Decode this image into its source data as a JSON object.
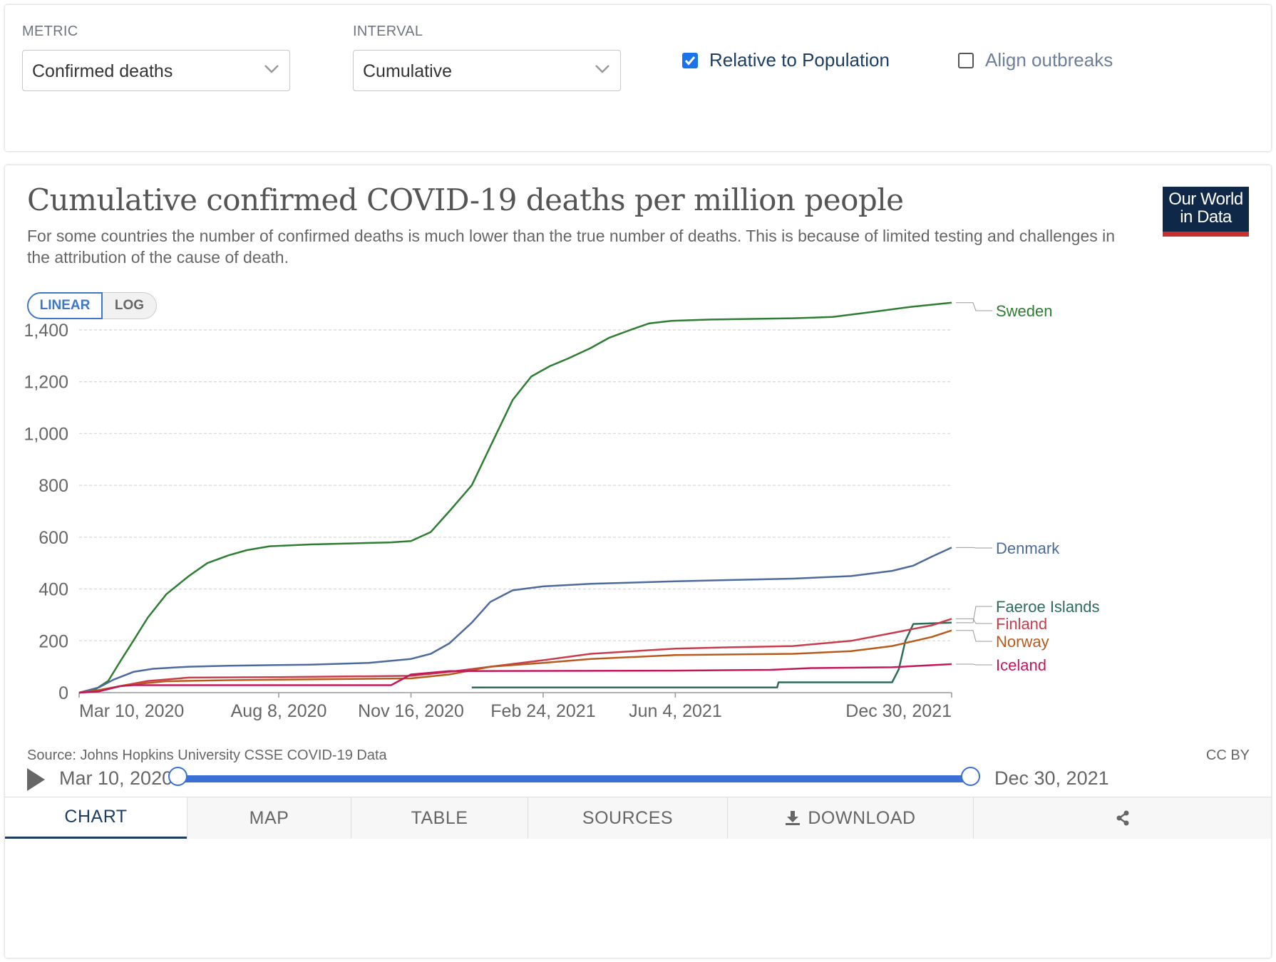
{
  "controls": {
    "metric_label": "METRIC",
    "metric_value": "Confirmed deaths",
    "interval_label": "INTERVAL",
    "interval_value": "Cumulative",
    "relative_label": "Relative to Population",
    "relative_checked": true,
    "align_label": "Align outbreaks",
    "align_checked": false
  },
  "header": {
    "title": "Cumulative confirmed COVID-19 deaths per million people",
    "subtitle": "For some countries the number of confirmed deaths is much lower than the true number of deaths. This is because of limited testing and challenges in the attribution of the cause of death.",
    "logo_line1": "Our World",
    "logo_line2": "in Data"
  },
  "scale_toggle": {
    "linear": "LINEAR",
    "log": "LOG",
    "active": "linear"
  },
  "footer": {
    "source": "Source: Johns Hopkins University CSSE COVID-19 Data",
    "license": "CC BY"
  },
  "timeline": {
    "start": "Mar 10, 2020",
    "end": "Dec 30, 2021"
  },
  "tabs": [
    {
      "label": "CHART",
      "icon": "",
      "active": true
    },
    {
      "label": "MAP",
      "icon": "",
      "active": false
    },
    {
      "label": "TABLE",
      "icon": "",
      "active": false
    },
    {
      "label": "SOURCES",
      "icon": "",
      "active": false
    },
    {
      "label": "DOWNLOAD",
      "icon": "download-icon",
      "active": false
    },
    {
      "label": "",
      "icon": "share-icon",
      "active": false
    }
  ],
  "chart_data": {
    "type": "line",
    "title": "Cumulative confirmed COVID-19 deaths per million people",
    "xlabel": "",
    "ylabel": "",
    "x_range": [
      "2020-03-10",
      "2021-12-30"
    ],
    "ylim": [
      0,
      1500
    ],
    "y_ticks": [
      0,
      200,
      400,
      600,
      800,
      1000,
      1200,
      1400
    ],
    "y_tick_labels": [
      "0",
      "200",
      "400",
      "600",
      "800",
      "1,000",
      "1,200",
      "1,400"
    ],
    "x_ticks": [
      "2020-03-10",
      "2020-08-08",
      "2020-11-16",
      "2021-02-24",
      "2021-06-04",
      "2021-12-30"
    ],
    "x_tick_labels": [
      "Mar 10, 2020",
      "Aug 8, 2020",
      "Nov 16, 2020",
      "Feb 24, 2021",
      "Jun 4, 2021",
      "Dec 30, 2021"
    ],
    "grid": "horizontal dashed",
    "legend": "end-of-line labels",
    "series": [
      {
        "name": "Sweden",
        "color": "#2e7d32",
        "points": [
          [
            "2020-03-10",
            0
          ],
          [
            "2020-03-20",
            5
          ],
          [
            "2020-04-01",
            45
          ],
          [
            "2020-04-10",
            120
          ],
          [
            "2020-04-20",
            200
          ],
          [
            "2020-05-01",
            290
          ],
          [
            "2020-05-15",
            380
          ],
          [
            "2020-06-01",
            450
          ],
          [
            "2020-06-15",
            500
          ],
          [
            "2020-07-01",
            530
          ],
          [
            "2020-07-15",
            550
          ],
          [
            "2020-08-01",
            565
          ],
          [
            "2020-09-01",
            572
          ],
          [
            "2020-10-01",
            576
          ],
          [
            "2020-11-01",
            580
          ],
          [
            "2020-11-16",
            585
          ],
          [
            "2020-12-01",
            620
          ],
          [
            "2020-12-15",
            700
          ],
          [
            "2021-01-01",
            800
          ],
          [
            "2021-01-15",
            950
          ],
          [
            "2021-02-01",
            1130
          ],
          [
            "2021-02-15",
            1220
          ],
          [
            "2021-03-01",
            1260
          ],
          [
            "2021-03-15",
            1290
          ],
          [
            "2021-04-01",
            1330
          ],
          [
            "2021-04-15",
            1370
          ],
          [
            "2021-05-01",
            1400
          ],
          [
            "2021-05-15",
            1425
          ],
          [
            "2021-06-01",
            1435
          ],
          [
            "2021-07-01",
            1440
          ],
          [
            "2021-09-01",
            1445
          ],
          [
            "2021-10-01",
            1450
          ],
          [
            "2021-11-01",
            1470
          ],
          [
            "2021-12-01",
            1490
          ],
          [
            "2021-12-30",
            1505
          ]
        ]
      },
      {
        "name": "Denmark",
        "color": "#4c6a9c",
        "points": [
          [
            "2020-03-10",
            0
          ],
          [
            "2020-03-25",
            20
          ],
          [
            "2020-04-05",
            50
          ],
          [
            "2020-04-20",
            80
          ],
          [
            "2020-05-05",
            92
          ],
          [
            "2020-06-01",
            100
          ],
          [
            "2020-07-01",
            104
          ],
          [
            "2020-09-01",
            108
          ],
          [
            "2020-10-15",
            115
          ],
          [
            "2020-11-16",
            130
          ],
          [
            "2020-12-01",
            150
          ],
          [
            "2020-12-15",
            190
          ],
          [
            "2021-01-01",
            270
          ],
          [
            "2021-01-15",
            350
          ],
          [
            "2021-02-01",
            395
          ],
          [
            "2021-02-24",
            410
          ],
          [
            "2021-04-01",
            420
          ],
          [
            "2021-06-04",
            430
          ],
          [
            "2021-09-01",
            440
          ],
          [
            "2021-10-15",
            450
          ],
          [
            "2021-11-15",
            470
          ],
          [
            "2021-12-01",
            490
          ],
          [
            "2021-12-15",
            525
          ],
          [
            "2021-12-30",
            560
          ]
        ]
      },
      {
        "name": "Faeroe Islands",
        "color": "#2e6b5a",
        "points": [
          [
            "2021-01-01",
            20
          ],
          [
            "2021-08-20",
            20
          ],
          [
            "2021-08-21",
            40
          ],
          [
            "2021-11-15",
            40
          ],
          [
            "2021-11-20",
            90
          ],
          [
            "2021-11-25",
            200
          ],
          [
            "2021-12-01",
            265
          ],
          [
            "2021-12-30",
            270
          ]
        ]
      },
      {
        "name": "Finland",
        "color": "#c83c4b",
        "points": [
          [
            "2020-03-10",
            0
          ],
          [
            "2020-03-25",
            5
          ],
          [
            "2020-04-10",
            25
          ],
          [
            "2020-05-01",
            45
          ],
          [
            "2020-06-01",
            58
          ],
          [
            "2020-08-08",
            60
          ],
          [
            "2020-11-16",
            65
          ],
          [
            "2020-12-15",
            80
          ],
          [
            "2021-01-15",
            100
          ],
          [
            "2021-02-24",
            125
          ],
          [
            "2021-04-01",
            150
          ],
          [
            "2021-06-04",
            170
          ],
          [
            "2021-07-15",
            175
          ],
          [
            "2021-09-01",
            180
          ],
          [
            "2021-10-15",
            200
          ],
          [
            "2021-11-15",
            230
          ],
          [
            "2021-12-15",
            260
          ],
          [
            "2021-12-30",
            285
          ]
        ]
      },
      {
        "name": "Norway",
        "color": "#b85a1b",
        "points": [
          [
            "2020-03-10",
            0
          ],
          [
            "2020-03-25",
            10
          ],
          [
            "2020-04-15",
            30
          ],
          [
            "2020-05-15",
            44
          ],
          [
            "2020-07-01",
            48
          ],
          [
            "2020-11-16",
            55
          ],
          [
            "2020-12-15",
            70
          ],
          [
            "2021-01-15",
            100
          ],
          [
            "2021-02-24",
            115
          ],
          [
            "2021-04-01",
            130
          ],
          [
            "2021-06-04",
            145
          ],
          [
            "2021-09-01",
            150
          ],
          [
            "2021-10-15",
            160
          ],
          [
            "2021-11-15",
            180
          ],
          [
            "2021-12-15",
            215
          ],
          [
            "2021-12-30",
            240
          ]
        ]
      },
      {
        "name": "Iceland",
        "color": "#c2185b",
        "points": [
          [
            "2020-03-10",
            0
          ],
          [
            "2020-03-25",
            5
          ],
          [
            "2020-04-10",
            25
          ],
          [
            "2020-04-20",
            29
          ],
          [
            "2020-11-01",
            29
          ],
          [
            "2020-11-16",
            70
          ],
          [
            "2020-12-15",
            83
          ],
          [
            "2021-06-04",
            85
          ],
          [
            "2021-08-15",
            88
          ],
          [
            "2021-09-15",
            95
          ],
          [
            "2021-11-15",
            98
          ],
          [
            "2021-12-30",
            110
          ]
        ]
      }
    ]
  }
}
